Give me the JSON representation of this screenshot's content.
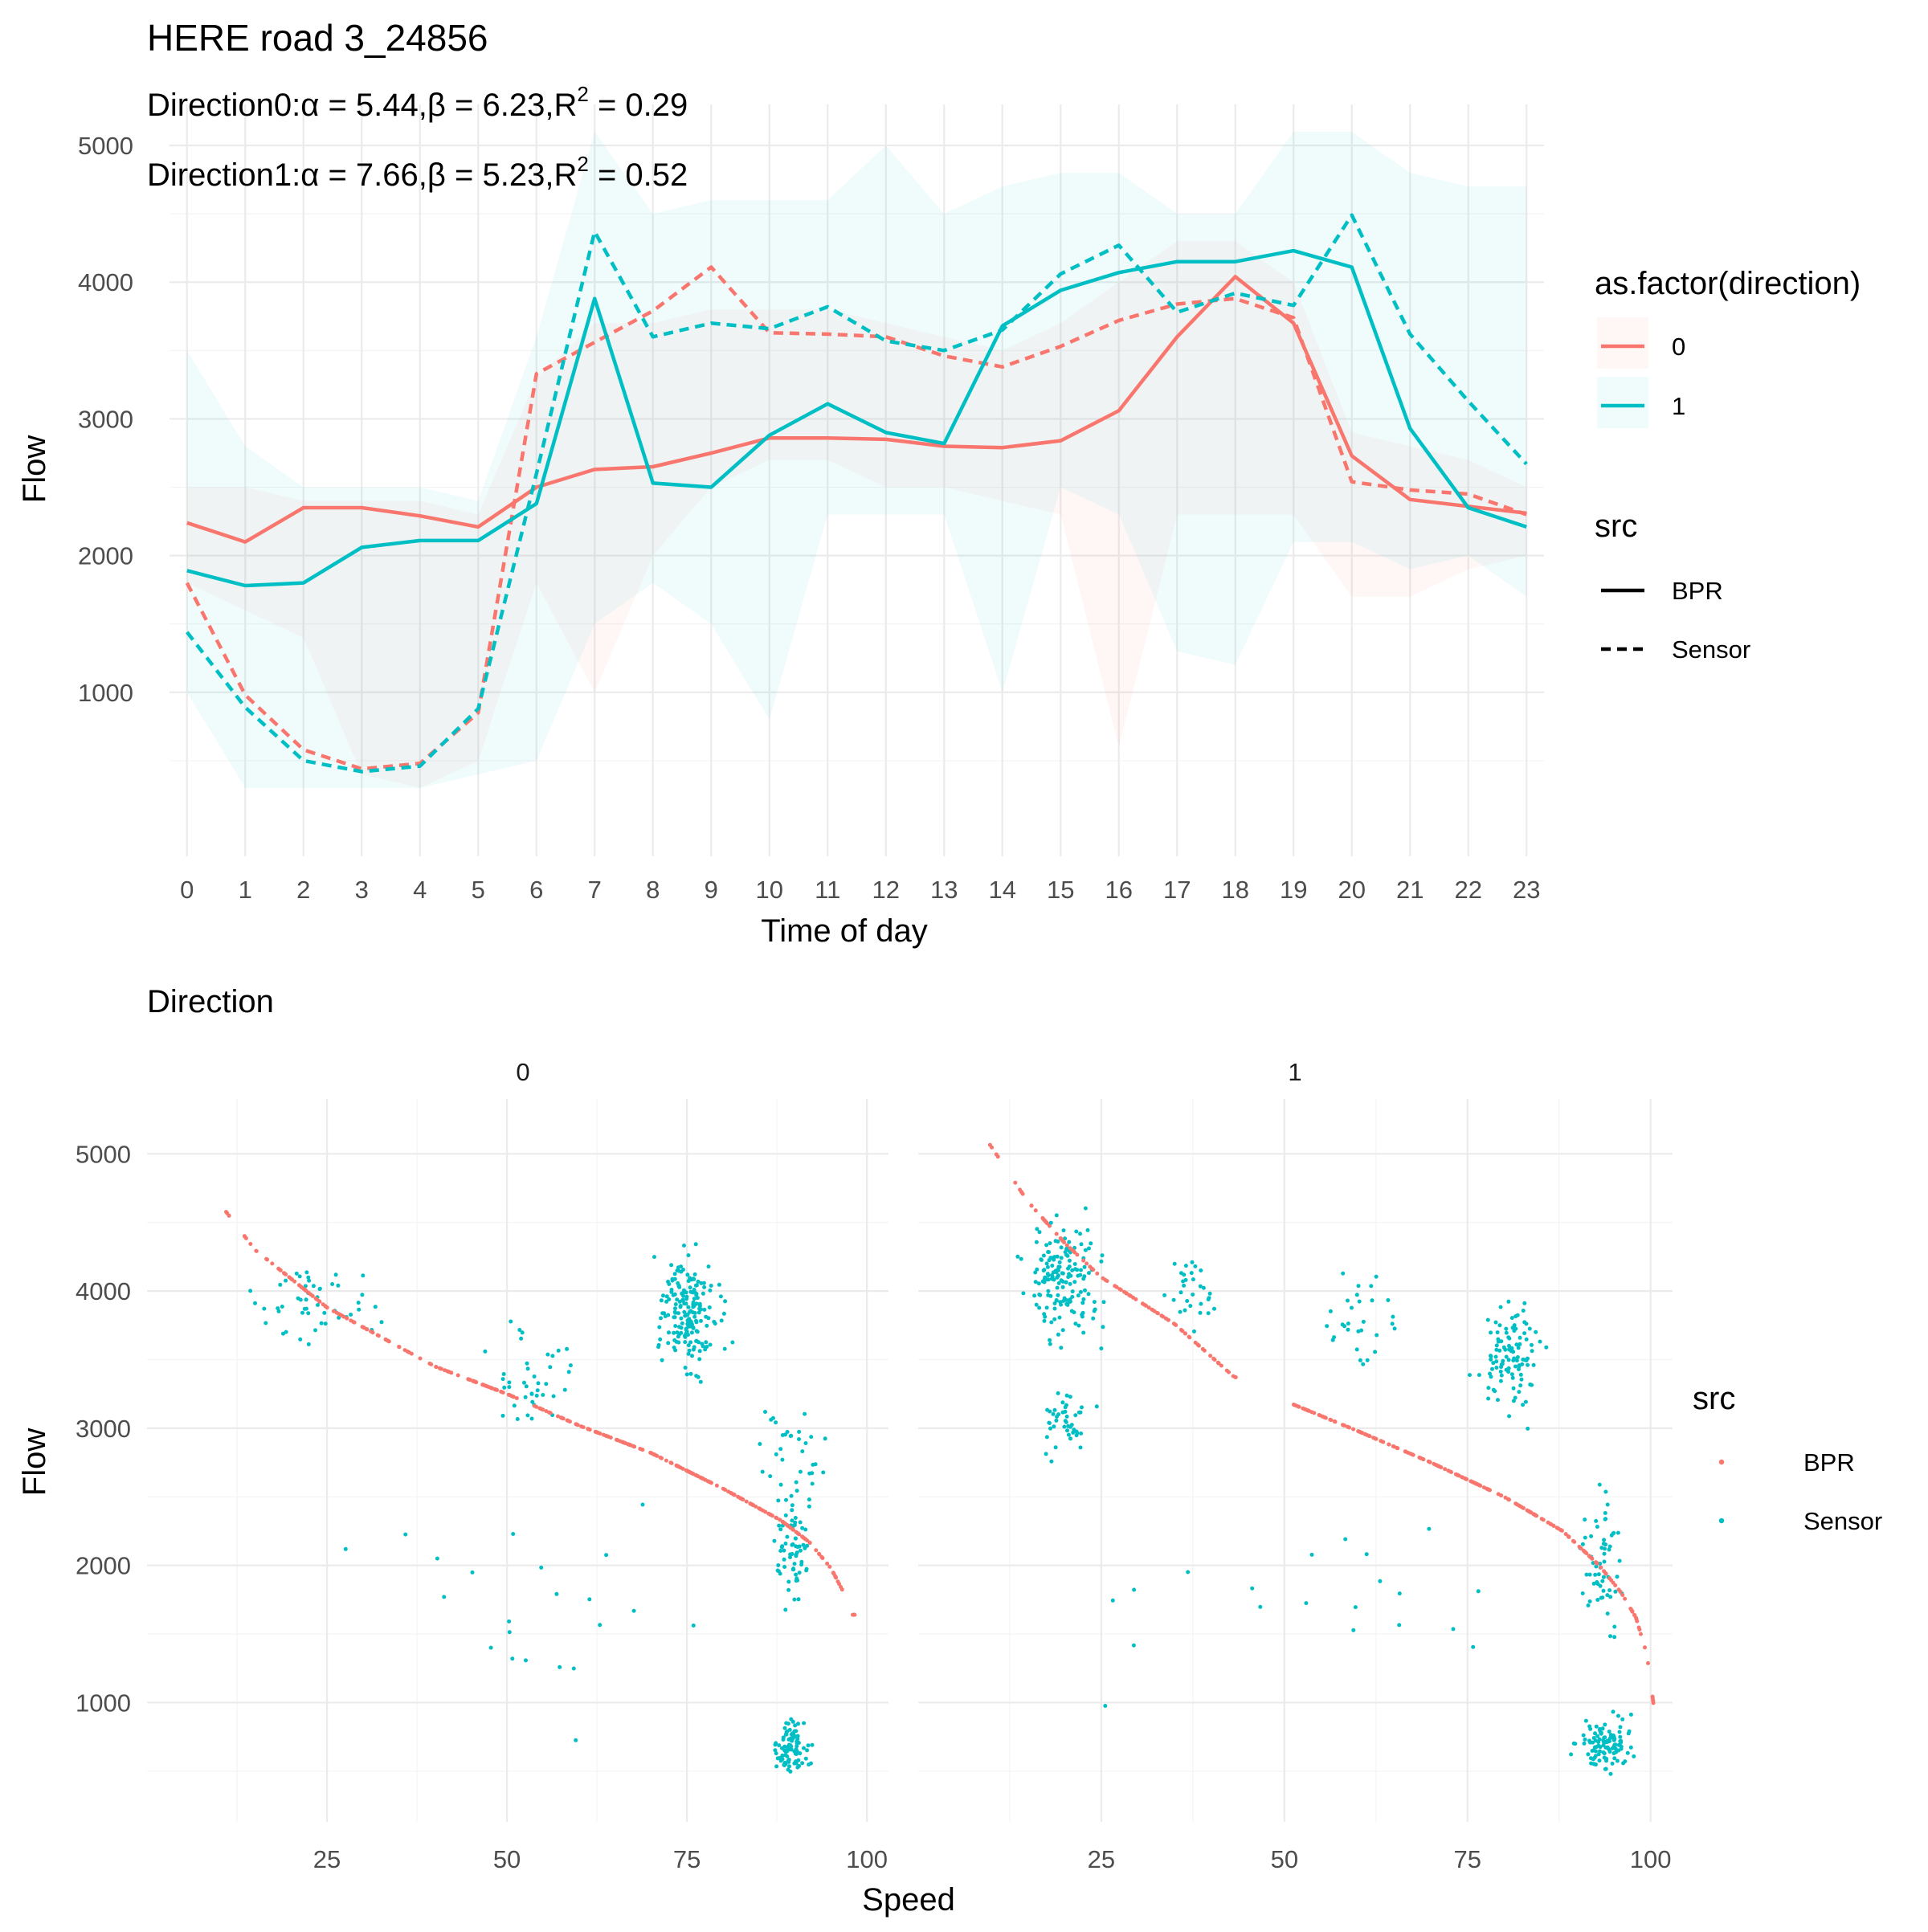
{
  "chart_data": [
    {
      "type": "line",
      "title": "HERE road 3_24856",
      "annotations": [
        {
          "prefix": "Direction0:",
          "alpha": "5.44",
          "beta": "6.23",
          "r2": "0.29"
        },
        {
          "prefix": "Direction1:",
          "alpha": "7.66",
          "beta": "5.23",
          "r2": "0.52"
        }
      ],
      "xlabel": "Time of day",
      "ylabel": "Flow",
      "x": [
        0,
        1,
        2,
        3,
        4,
        5,
        6,
        7,
        8,
        9,
        10,
        11,
        12,
        13,
        14,
        15,
        16,
        17,
        18,
        19,
        20,
        21,
        22,
        23
      ],
      "xlim": [
        -0.3,
        23.3
      ],
      "ylim": [
        -200,
        5300
      ],
      "y_ticks": [
        1000,
        2000,
        3000,
        4000,
        5000
      ],
      "grid": true,
      "colors": {
        "0": "#F8766D",
        "1": "#00BFC4"
      },
      "legend": {
        "placement": "right",
        "colour_title": "as.factor(direction)",
        "colour_entries": [
          "0",
          "1"
        ],
        "linetype_title": "src",
        "linetype_entries": [
          "BPR",
          "Sensor"
        ]
      },
      "series": [
        {
          "direction": "0",
          "src": "BPR",
          "values": [
            2240,
            2100,
            2350,
            2350,
            2290,
            2210,
            2500,
            2630,
            2650,
            2750,
            2860,
            2860,
            2850,
            2800,
            2790,
            2840,
            3060,
            3600,
            4040,
            3700,
            2730,
            2410,
            2360,
            2310
          ]
        },
        {
          "direction": "0",
          "src": "Sensor",
          "values": [
            1800,
            980,
            580,
            440,
            480,
            850,
            3330,
            3560,
            3790,
            4110,
            3630,
            3620,
            3600,
            3460,
            3380,
            3530,
            3720,
            3840,
            3880,
            3740,
            2540,
            2480,
            2450,
            2300
          ]
        },
        {
          "direction": "1",
          "src": "BPR",
          "values": [
            1890,
            1780,
            1800,
            2060,
            2110,
            2110,
            2380,
            3880,
            2530,
            2500,
            2880,
            3110,
            2900,
            2820,
            3680,
            3940,
            4070,
            4150,
            4150,
            4230,
            4110,
            2930,
            2350,
            2210
          ]
        },
        {
          "direction": "1",
          "src": "Sensor",
          "values": [
            1440,
            890,
            500,
            420,
            460,
            880,
            2600,
            4370,
            3600,
            3700,
            3660,
            3820,
            3570,
            3500,
            3650,
            4060,
            4270,
            3780,
            3920,
            3830,
            4490,
            3620,
            3130,
            2670
          ]
        }
      ],
      "ribbons": [
        {
          "direction": "0",
          "upper": [
            2500,
            2500,
            2400,
            2400,
            2400,
            2300,
            3300,
            3700,
            3700,
            3800,
            3800,
            3800,
            3700,
            3600,
            3500,
            3700,
            4000,
            4300,
            4300,
            4000,
            2900,
            2800,
            2700,
            2500
          ],
          "lower": [
            1800,
            1600,
            1400,
            400,
            300,
            500,
            1800,
            1000,
            2000,
            2500,
            2700,
            2700,
            2500,
            2500,
            2400,
            2300,
            600,
            2300,
            2300,
            2300,
            1700,
            1700,
            1900,
            2000
          ]
        },
        {
          "direction": "1",
          "upper": [
            3500,
            2800,
            2500,
            2500,
            2500,
            2400,
            3600,
            5100,
            4500,
            4600,
            4600,
            4600,
            5000,
            4500,
            4700,
            4800,
            4800,
            4500,
            4500,
            5100,
            5100,
            4800,
            4700,
            4700
          ],
          "lower": [
            1000,
            300,
            300,
            300,
            300,
            400,
            500,
            1500,
            1800,
            1500,
            800,
            2300,
            2300,
            2300,
            1000,
            2500,
            2300,
            1300,
            1200,
            2100,
            2100,
            1900,
            2000,
            1700
          ]
        }
      ]
    },
    {
      "type": "scatter",
      "title": "Direction",
      "xlabel": "Speed",
      "ylabel": "Flow",
      "x_ticks": [
        25,
        50,
        75,
        100
      ],
      "y_ticks": [
        1000,
        2000,
        3000,
        4000,
        5000
      ],
      "xlim": [
        0,
        103
      ],
      "ylim": [
        130,
        5400
      ],
      "grid": true,
      "legend": {
        "placement": "right",
        "title": "src",
        "entries": [
          "BPR",
          "Sensor"
        ]
      },
      "colors": {
        "BPR": "#F8766D",
        "Sensor": "#00BFC4"
      },
      "facets": [
        {
          "label": "0",
          "bpr": {
            "alpha": 5.44,
            "beta": 6.23,
            "speed_range": [
              9.5,
              98.5
            ],
            "anchors": [
              [
                9.5,
                4680
              ],
              [
                15,
                4300
              ],
              [
                25,
                3880
              ],
              [
                40,
                3450
              ],
              [
                50,
                3250
              ],
              [
                60,
                3020
              ],
              [
                70,
                2820
              ],
              [
                80,
                2560
              ],
              [
                88,
                2330
              ],
              [
                92,
                2170
              ],
              [
                95,
                1980
              ],
              [
                97,
                1780
              ],
              [
                98,
                1640
              ]
            ]
          },
          "sensor_clusters": [
            {
              "n": 190,
              "speed": [
                68,
                82
              ],
              "flow": [
                3150,
                4500
              ],
              "seed": 11
            },
            {
              "n": 70,
              "speed": [
                85,
                94
              ],
              "flow": [
                1500,
                2850
              ],
              "seed": 12
            },
            {
              "n": 90,
              "speed": [
                85,
                94
              ],
              "flow": [
                350,
                1000
              ],
              "seed": 13
            },
            {
              "n": 50,
              "speed": [
                8,
                38
              ],
              "flow": [
                3500,
                4350
              ],
              "seed": 14
            },
            {
              "n": 40,
              "speed": [
                42,
                66
              ],
              "flow": [
                2700,
                4100
              ],
              "seed": 15
            },
            {
              "n": 30,
              "speed": [
                80,
                99
              ],
              "flow": [
                2200,
                3600
              ],
              "seed": 16
            },
            {
              "n": 22,
              "speed": [
                8,
                98
              ],
              "flow": [
                250,
                3400
              ],
              "seed": 17
            }
          ]
        },
        {
          "label": "1",
          "bpr": {
            "alpha": 7.66,
            "beta": 5.23,
            "speed_range": [
              8.5,
              100.5
            ],
            "anchors": [
              [
                8.5,
                5170
              ],
              [
                15,
                4650
              ],
              [
                20,
                4350
              ],
              [
                25,
                4100
              ],
              [
                35,
                3760
              ],
              [
                43,
                3380
              ],
              [
                50,
                3200
              ],
              [
                60,
                2980
              ],
              [
                70,
                2750
              ],
              [
                80,
                2500
              ],
              [
                88,
                2250
              ],
              [
                93,
                2000
              ],
              [
                96,
                1800
              ],
              [
                98,
                1620
              ],
              [
                99.5,
                1350
              ],
              [
                100.5,
                950
              ]
            ]
          },
          "sensor_clusters": [
            {
              "n": 170,
              "speed": [
                12,
                28
              ],
              "flow": [
                3300,
                4900
              ],
              "seed": 21
            },
            {
              "n": 45,
              "speed": [
                14,
                26
              ],
              "flow": [
                2600,
                3400
              ],
              "seed": 22
            },
            {
              "n": 30,
              "speed": [
                30,
                44
              ],
              "flow": [
                3500,
                4500
              ],
              "seed": 23
            },
            {
              "n": 110,
              "speed": [
                74,
                88
              ],
              "flow": [
                2900,
                4100
              ],
              "seed": 24
            },
            {
              "n": 60,
              "speed": [
                88,
                99
              ],
              "flow": [
                1200,
                2900
              ],
              "seed": 25
            },
            {
              "n": 110,
              "speed": [
                88,
                100
              ],
              "flow": [
                330,
                1000
              ],
              "seed": 26
            },
            {
              "n": 30,
              "speed": [
                52,
                70
              ],
              "flow": [
                3000,
                4500
              ],
              "seed": 27
            },
            {
              "n": 20,
              "speed": [
                8,
                100
              ],
              "flow": [
                400,
                3000
              ],
              "seed": 28
            }
          ]
        }
      ]
    }
  ]
}
